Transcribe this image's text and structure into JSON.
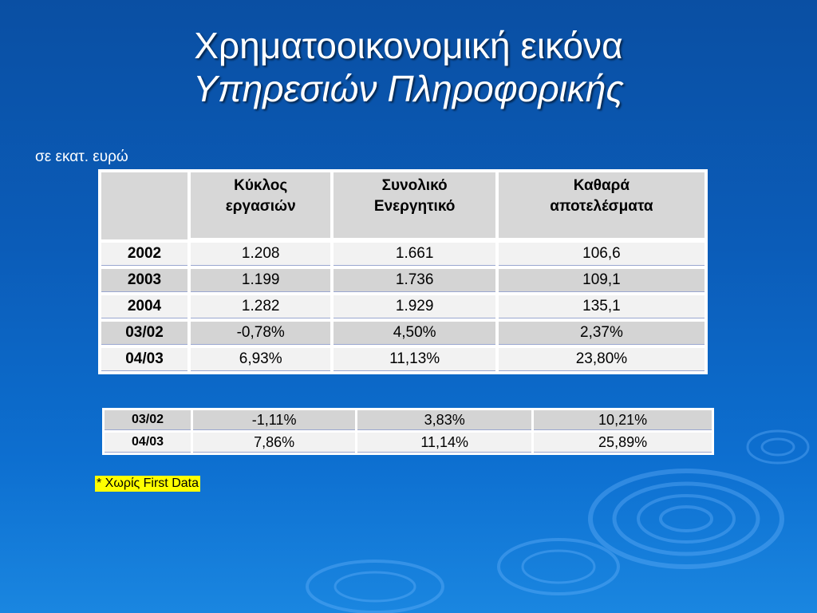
{
  "title": {
    "line1": "Χρηματοοικονομική εικόνα",
    "line2": "Υπηρεσιών Πληροφορικής"
  },
  "unit_label": "σε εκατ. ευρώ",
  "main_table": {
    "headers": [
      {
        "line1": "Κύκλος",
        "line2": "εργασιών"
      },
      {
        "line1": "Συνολικό",
        "line2": "Ενεργητικό"
      },
      {
        "line1": "Καθαρά",
        "line2": "αποτελέσματα"
      }
    ],
    "rows": [
      {
        "label": "2002",
        "values": [
          "1.208",
          "1.661",
          "106,6"
        ]
      },
      {
        "label": "2003",
        "values": [
          "1.199",
          "1.736",
          "109,1"
        ]
      },
      {
        "label": "2004",
        "values": [
          "1.282",
          "1.929",
          "135,1"
        ]
      },
      {
        "label": "03/02",
        "values": [
          "-0,78%",
          "4,50%",
          "2,37%"
        ]
      },
      {
        "label": "04/03",
        "values": [
          "6,93%",
          "11,13%",
          "23,80%"
        ]
      }
    ]
  },
  "second_table": {
    "rows": [
      {
        "label": "03/02",
        "values": [
          "-1,11%",
          "3,83%",
          "10,21%"
        ]
      },
      {
        "label": "04/03",
        "values": [
          "7,86%",
          "11,14%",
          "25,89%"
        ]
      }
    ]
  },
  "footnote": "* Χωρίς First Data",
  "colors": {
    "background": "#0b5cb8",
    "title_text": "#ffffff",
    "row_gray": "#d4d4d4",
    "row_white": "#f2f2f2",
    "footnote_highlight": "#ffff00"
  }
}
